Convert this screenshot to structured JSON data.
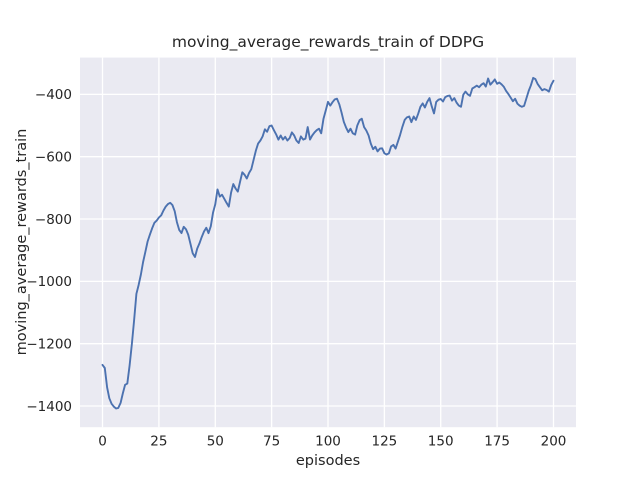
{
  "chart_data": {
    "type": "line",
    "title": "moving_average_rewards_train of DDPG",
    "xlabel": "episodes",
    "ylabel": "moving_average_rewards_train",
    "x_ticks": [
      0,
      25,
      50,
      75,
      100,
      125,
      150,
      175,
      200
    ],
    "y_ticks": [
      -400,
      -600,
      -800,
      -1000,
      -1200,
      -1400
    ],
    "xlim": [
      -10,
      210
    ],
    "ylim": [
      -1468,
      -282
    ],
    "grid": true,
    "legend": "none",
    "colors": {
      "line": "#4c72b0",
      "axes_background": "#eaeaf2",
      "grid_line": "#ffffff",
      "text": "#262626",
      "figure_background": "#ffffff"
    },
    "series": [
      {
        "name": "moving_average_rewards_train",
        "x0": 0,
        "dx": 1,
        "values": [
          -1268,
          -1278,
          -1340,
          -1375,
          -1393,
          -1402,
          -1408,
          -1406,
          -1390,
          -1360,
          -1332,
          -1328,
          -1270,
          -1200,
          -1125,
          -1040,
          -1012,
          -978,
          -938,
          -905,
          -872,
          -850,
          -830,
          -812,
          -805,
          -795,
          -788,
          -773,
          -760,
          -752,
          -748,
          -755,
          -775,
          -810,
          -835,
          -845,
          -825,
          -833,
          -850,
          -880,
          -910,
          -922,
          -895,
          -878,
          -858,
          -840,
          -828,
          -845,
          -823,
          -780,
          -752,
          -705,
          -728,
          -722,
          -735,
          -748,
          -760,
          -715,
          -688,
          -702,
          -712,
          -680,
          -650,
          -658,
          -670,
          -652,
          -640,
          -610,
          -580,
          -558,
          -548,
          -535,
          -512,
          -520,
          -502,
          -500,
          -515,
          -528,
          -545,
          -532,
          -545,
          -536,
          -548,
          -540,
          -522,
          -532,
          -548,
          -556,
          -535,
          -545,
          -542,
          -505,
          -545,
          -532,
          -522,
          -515,
          -510,
          -525,
          -478,
          -452,
          -424,
          -436,
          -425,
          -416,
          -414,
          -432,
          -458,
          -488,
          -506,
          -521,
          -510,
          -525,
          -529,
          -500,
          -483,
          -478,
          -505,
          -516,
          -532,
          -558,
          -576,
          -568,
          -583,
          -574,
          -573,
          -589,
          -593,
          -589,
          -567,
          -562,
          -574,
          -552,
          -530,
          -504,
          -482,
          -474,
          -471,
          -489,
          -471,
          -482,
          -462,
          -440,
          -429,
          -442,
          -424,
          -412,
          -438,
          -461,
          -424,
          -417,
          -415,
          -423,
          -409,
          -405,
          -404,
          -420,
          -412,
          -426,
          -436,
          -440,
          -401,
          -391,
          -400,
          -405,
          -381,
          -377,
          -372,
          -377,
          -369,
          -364,
          -375,
          -349,
          -369,
          -361,
          -352,
          -366,
          -362,
          -368,
          -376,
          -389,
          -399,
          -410,
          -422,
          -414,
          -430,
          -436,
          -440,
          -437,
          -413,
          -389,
          -371,
          -347,
          -351,
          -367,
          -377,
          -387,
          -383,
          -386,
          -391,
          -370,
          -356
        ]
      }
    ]
  }
}
